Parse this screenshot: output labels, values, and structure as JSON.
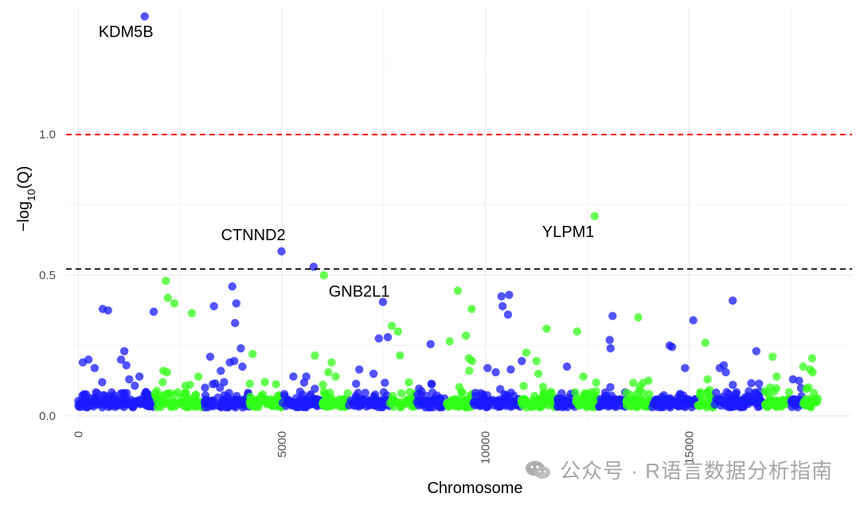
{
  "chart_data": {
    "type": "scatter",
    "title": "",
    "xlabel": "Chromosome",
    "ylabel": "−log10(Q)",
    "ylabel_main": "−log",
    "ylabel_sub": "10",
    "ylabel_tail": "(Q)",
    "xlim": [
      -300,
      19000
    ],
    "ylim": [
      -0.02,
      1.45
    ],
    "x_ticks": [
      0,
      5000,
      10000,
      15000
    ],
    "x_tick_labels": [
      "0",
      "5000",
      "10000",
      "15000"
    ],
    "y_ticks": [
      0.0,
      0.5,
      1.0
    ],
    "y_tick_labels": [
      "0.0",
      "0.5",
      "1.0"
    ],
    "grid": true,
    "legend": "none",
    "colors": {
      "blue": "#1a1aff",
      "green": "#33ff1a",
      "red_threshold": "#ff0000",
      "black_threshold": "#000000",
      "grid": "#ebebeb"
    },
    "thresholds": [
      {
        "y": 1.0,
        "color": "#ff0000",
        "style": "dashed"
      },
      {
        "y": 0.522,
        "color": "#000000",
        "style": "dashed"
      }
    ],
    "chromosome_bands": [
      {
        "start": 0,
        "end": 1880,
        "color": "blue"
      },
      {
        "start": 1880,
        "end": 3100,
        "color": "green"
      },
      {
        "start": 3100,
        "end": 4200,
        "color": "blue"
      },
      {
        "start": 4200,
        "end": 5000,
        "color": "green"
      },
      {
        "start": 5000,
        "end": 6000,
        "color": "blue"
      },
      {
        "start": 6000,
        "end": 6650,
        "color": "green"
      },
      {
        "start": 6650,
        "end": 7650,
        "color": "blue"
      },
      {
        "start": 7650,
        "end": 8300,
        "color": "green"
      },
      {
        "start": 8300,
        "end": 9000,
        "color": "blue"
      },
      {
        "start": 9000,
        "end": 9700,
        "color": "green"
      },
      {
        "start": 9700,
        "end": 10850,
        "color": "blue"
      },
      {
        "start": 10850,
        "end": 11750,
        "color": "green"
      },
      {
        "start": 11750,
        "end": 12200,
        "color": "blue"
      },
      {
        "start": 12200,
        "end": 12750,
        "color": "green"
      },
      {
        "start": 12750,
        "end": 13450,
        "color": "blue"
      },
      {
        "start": 13450,
        "end": 14100,
        "color": "green"
      },
      {
        "start": 14100,
        "end": 15200,
        "color": "blue"
      },
      {
        "start": 15200,
        "end": 15600,
        "color": "green"
      },
      {
        "start": 15600,
        "end": 16850,
        "color": "blue"
      },
      {
        "start": 16850,
        "end": 17500,
        "color": "green"
      },
      {
        "start": 17500,
        "end": 17800,
        "color": "blue"
      },
      {
        "start": 17800,
        "end": 18200,
        "color": "green"
      }
    ],
    "points": [
      {
        "x": 1630,
        "y": 1.42,
        "c": "blue"
      },
      {
        "x": 4990,
        "y": 0.585,
        "c": "blue"
      },
      {
        "x": 5780,
        "y": 0.53,
        "c": "blue"
      },
      {
        "x": 6030,
        "y": 0.5,
        "c": "green"
      },
      {
        "x": 12680,
        "y": 0.71,
        "c": "green"
      },
      {
        "x": 110,
        "y": 0.19,
        "c": "blue"
      },
      {
        "x": 250,
        "y": 0.2,
        "c": "blue"
      },
      {
        "x": 400,
        "y": 0.17,
        "c": "blue"
      },
      {
        "x": 600,
        "y": 0.38,
        "c": "blue"
      },
      {
        "x": 730,
        "y": 0.375,
        "c": "blue"
      },
      {
        "x": 1050,
        "y": 0.2,
        "c": "blue"
      },
      {
        "x": 1130,
        "y": 0.23,
        "c": "blue"
      },
      {
        "x": 1180,
        "y": 0.18,
        "c": "blue"
      },
      {
        "x": 1250,
        "y": 0.13,
        "c": "blue"
      },
      {
        "x": 1500,
        "y": 0.14,
        "c": "blue"
      },
      {
        "x": 1850,
        "y": 0.37,
        "c": "blue"
      },
      {
        "x": 2150,
        "y": 0.48,
        "c": "green"
      },
      {
        "x": 2200,
        "y": 0.42,
        "c": "green"
      },
      {
        "x": 2360,
        "y": 0.4,
        "c": "green"
      },
      {
        "x": 2090,
        "y": 0.16,
        "c": "green"
      },
      {
        "x": 2180,
        "y": 0.155,
        "c": "green"
      },
      {
        "x": 2790,
        "y": 0.365,
        "c": "green"
      },
      {
        "x": 2950,
        "y": 0.14,
        "c": "green"
      },
      {
        "x": 3240,
        "y": 0.21,
        "c": "blue"
      },
      {
        "x": 3330,
        "y": 0.39,
        "c": "blue"
      },
      {
        "x": 3500,
        "y": 0.16,
        "c": "blue"
      },
      {
        "x": 3780,
        "y": 0.46,
        "c": "blue"
      },
      {
        "x": 3880,
        "y": 0.4,
        "c": "blue"
      },
      {
        "x": 3850,
        "y": 0.33,
        "c": "blue"
      },
      {
        "x": 3990,
        "y": 0.24,
        "c": "blue"
      },
      {
        "x": 3720,
        "y": 0.19,
        "c": "blue"
      },
      {
        "x": 3830,
        "y": 0.195,
        "c": "blue"
      },
      {
        "x": 4030,
        "y": 0.175,
        "c": "blue"
      },
      {
        "x": 3580,
        "y": 0.12,
        "c": "blue"
      },
      {
        "x": 4280,
        "y": 0.22,
        "c": "green"
      },
      {
        "x": 4580,
        "y": 0.12,
        "c": "green"
      },
      {
        "x": 5280,
        "y": 0.14,
        "c": "blue"
      },
      {
        "x": 5600,
        "y": 0.14,
        "c": "blue"
      },
      {
        "x": 5810,
        "y": 0.215,
        "c": "green"
      },
      {
        "x": 6220,
        "y": 0.19,
        "c": "green"
      },
      {
        "x": 6140,
        "y": 0.155,
        "c": "green"
      },
      {
        "x": 6320,
        "y": 0.14,
        "c": "green"
      },
      {
        "x": 6900,
        "y": 0.165,
        "c": "blue"
      },
      {
        "x": 7250,
        "y": 0.15,
        "c": "blue"
      },
      {
        "x": 7380,
        "y": 0.275,
        "c": "blue"
      },
      {
        "x": 7480,
        "y": 0.405,
        "c": "blue"
      },
      {
        "x": 7600,
        "y": 0.28,
        "c": "blue"
      },
      {
        "x": 7700,
        "y": 0.32,
        "c": "green"
      },
      {
        "x": 7850,
        "y": 0.3,
        "c": "green"
      },
      {
        "x": 7900,
        "y": 0.215,
        "c": "green"
      },
      {
        "x": 8650,
        "y": 0.255,
        "c": "blue"
      },
      {
        "x": 9120,
        "y": 0.265,
        "c": "green"
      },
      {
        "x": 9320,
        "y": 0.445,
        "c": "green"
      },
      {
        "x": 9520,
        "y": 0.285,
        "c": "green"
      },
      {
        "x": 9590,
        "y": 0.205,
        "c": "green"
      },
      {
        "x": 9670,
        "y": 0.195,
        "c": "green"
      },
      {
        "x": 9600,
        "y": 0.16,
        "c": "green"
      },
      {
        "x": 9660,
        "y": 0.38,
        "c": "green"
      },
      {
        "x": 10050,
        "y": 0.17,
        "c": "blue"
      },
      {
        "x": 10250,
        "y": 0.155,
        "c": "blue"
      },
      {
        "x": 10390,
        "y": 0.425,
        "c": "blue"
      },
      {
        "x": 10420,
        "y": 0.39,
        "c": "blue"
      },
      {
        "x": 10580,
        "y": 0.43,
        "c": "blue"
      },
      {
        "x": 10550,
        "y": 0.36,
        "c": "blue"
      },
      {
        "x": 10620,
        "y": 0.165,
        "c": "blue"
      },
      {
        "x": 10890,
        "y": 0.195,
        "c": "blue"
      },
      {
        "x": 11000,
        "y": 0.225,
        "c": "green"
      },
      {
        "x": 11250,
        "y": 0.195,
        "c": "green"
      },
      {
        "x": 11300,
        "y": 0.15,
        "c": "green"
      },
      {
        "x": 11500,
        "y": 0.31,
        "c": "green"
      },
      {
        "x": 12000,
        "y": 0.175,
        "c": "blue"
      },
      {
        "x": 12250,
        "y": 0.3,
        "c": "green"
      },
      {
        "x": 12400,
        "y": 0.14,
        "c": "green"
      },
      {
        "x": 13050,
        "y": 0.27,
        "c": "blue"
      },
      {
        "x": 13070,
        "y": 0.24,
        "c": "blue"
      },
      {
        "x": 13120,
        "y": 0.355,
        "c": "blue"
      },
      {
        "x": 13750,
        "y": 0.35,
        "c": "green"
      },
      {
        "x": 14000,
        "y": 0.125,
        "c": "green"
      },
      {
        "x": 14520,
        "y": 0.25,
        "c": "blue"
      },
      {
        "x": 14580,
        "y": 0.245,
        "c": "blue"
      },
      {
        "x": 14900,
        "y": 0.17,
        "c": "blue"
      },
      {
        "x": 15100,
        "y": 0.34,
        "c": "blue"
      },
      {
        "x": 15400,
        "y": 0.26,
        "c": "green"
      },
      {
        "x": 15450,
        "y": 0.13,
        "c": "green"
      },
      {
        "x": 15750,
        "y": 0.17,
        "c": "blue"
      },
      {
        "x": 15850,
        "y": 0.18,
        "c": "blue"
      },
      {
        "x": 15900,
        "y": 0.155,
        "c": "blue"
      },
      {
        "x": 16070,
        "y": 0.41,
        "c": "blue"
      },
      {
        "x": 16650,
        "y": 0.23,
        "c": "blue"
      },
      {
        "x": 17050,
        "y": 0.21,
        "c": "green"
      },
      {
        "x": 17150,
        "y": 0.14,
        "c": "green"
      },
      {
        "x": 17550,
        "y": 0.13,
        "c": "blue"
      },
      {
        "x": 17700,
        "y": 0.125,
        "c": "blue"
      },
      {
        "x": 17800,
        "y": 0.175,
        "c": "green"
      },
      {
        "x": 17970,
        "y": 0.165,
        "c": "green"
      },
      {
        "x": 18020,
        "y": 0.205,
        "c": "green"
      },
      {
        "x": 18030,
        "y": 0.155,
        "c": "green"
      }
    ],
    "annotations": [
      {
        "text": "KDM5B",
        "x": 1630,
        "y": 1.42,
        "dx": -58,
        "dy": 26
      },
      {
        "text": "CTNND2",
        "x": 4990,
        "y": 0.585,
        "dx": -76,
        "dy": -14
      },
      {
        "text": "GNB2L1",
        "x": 6030,
        "y": 0.5,
        "dx": 6,
        "dy": 27
      },
      {
        "text": "YLPM1",
        "x": 12680,
        "y": 0.71,
        "dx": -66,
        "dy": 26
      }
    ]
  },
  "watermark": {
    "text": "公众号 · R语言数据分析指南",
    "logo_icon": "wechat-icon"
  }
}
